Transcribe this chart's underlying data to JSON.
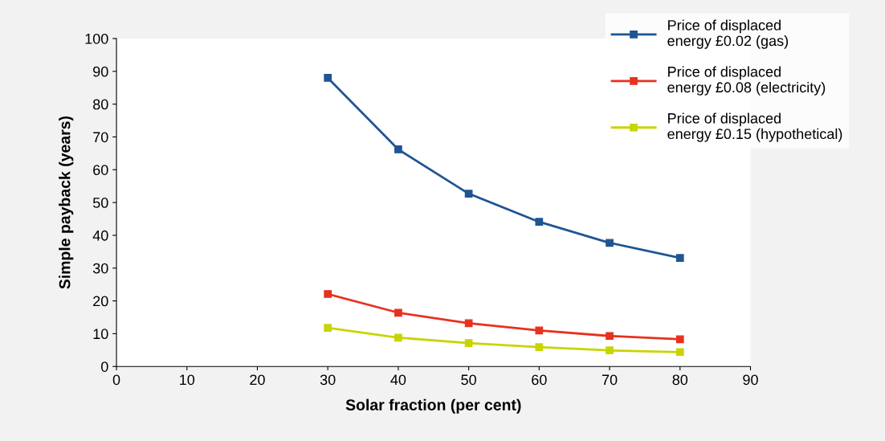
{
  "chart_data": {
    "type": "line",
    "xlabel": "Solar fraction (per cent)",
    "ylabel": "Simple payback (years)",
    "x": [
      30,
      40,
      50,
      60,
      70,
      80
    ],
    "series": [
      {
        "name": "Price of displaced\nenergy £0.02 (gas)",
        "color": "#1f5591",
        "values": [
          88,
          66.2,
          52.7,
          44.1,
          37.7,
          33.1
        ]
      },
      {
        "name": "Price of displaced\nenergy £0.08 (electricity)",
        "color": "#e8311f",
        "values": [
          22.1,
          16.4,
          13.2,
          11.0,
          9.3,
          8.3
        ]
      },
      {
        "name": "Price of displaced\nenergy £0.15 (hypothetical)",
        "color": "#c8d400",
        "values": [
          11.8,
          8.8,
          7.1,
          5.9,
          4.9,
          4.4
        ]
      }
    ],
    "xlim": [
      0,
      90
    ],
    "xticks": [
      0,
      10,
      20,
      30,
      40,
      50,
      60,
      70,
      80,
      90
    ],
    "ylim": [
      0,
      100
    ],
    "yticks": [
      0,
      10,
      20,
      30,
      40,
      50,
      60,
      70,
      80,
      90,
      100
    ],
    "grid": false,
    "legend": "top right",
    "marker": "square",
    "line_style": "solid"
  }
}
